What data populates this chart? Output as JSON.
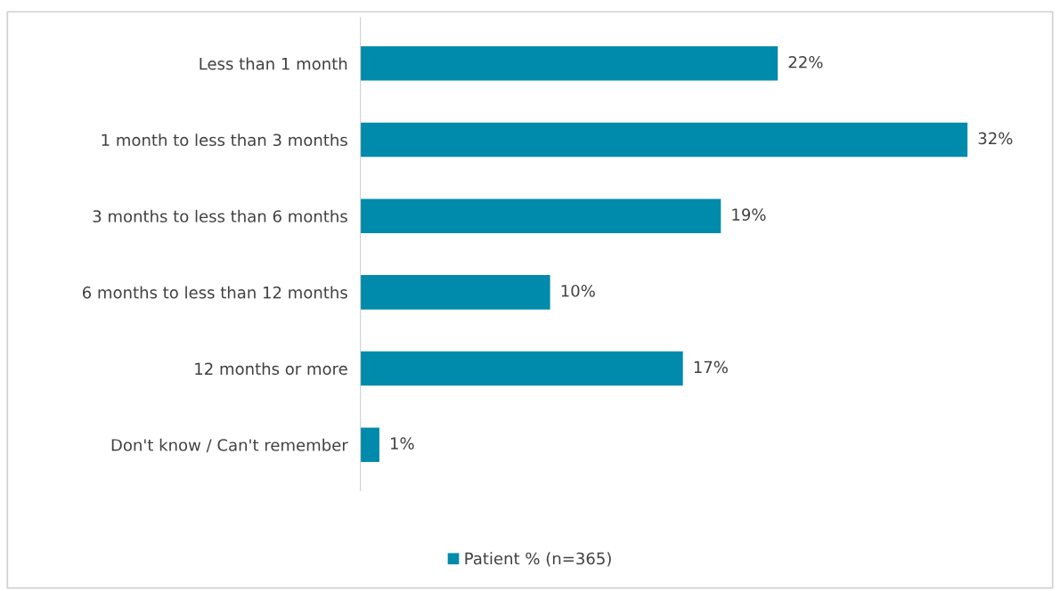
{
  "chart_data": {
    "type": "bar",
    "orientation": "horizontal",
    "categories": [
      "Less than 1 month",
      "1 month to less than 3 months",
      "3 months to less than 6 months",
      "6 months to less than 12 months",
      "12 months or more",
      "Don't know / Can't remember"
    ],
    "series": [
      {
        "name": "Patient % (n=365)",
        "color": "#008aab",
        "values": [
          22,
          32,
          19,
          10,
          17,
          1
        ],
        "value_labels": [
          "22%",
          "32%",
          "19%",
          "10%",
          "17%",
          "1%"
        ]
      }
    ],
    "legend": "bottom",
    "grid": false
  }
}
